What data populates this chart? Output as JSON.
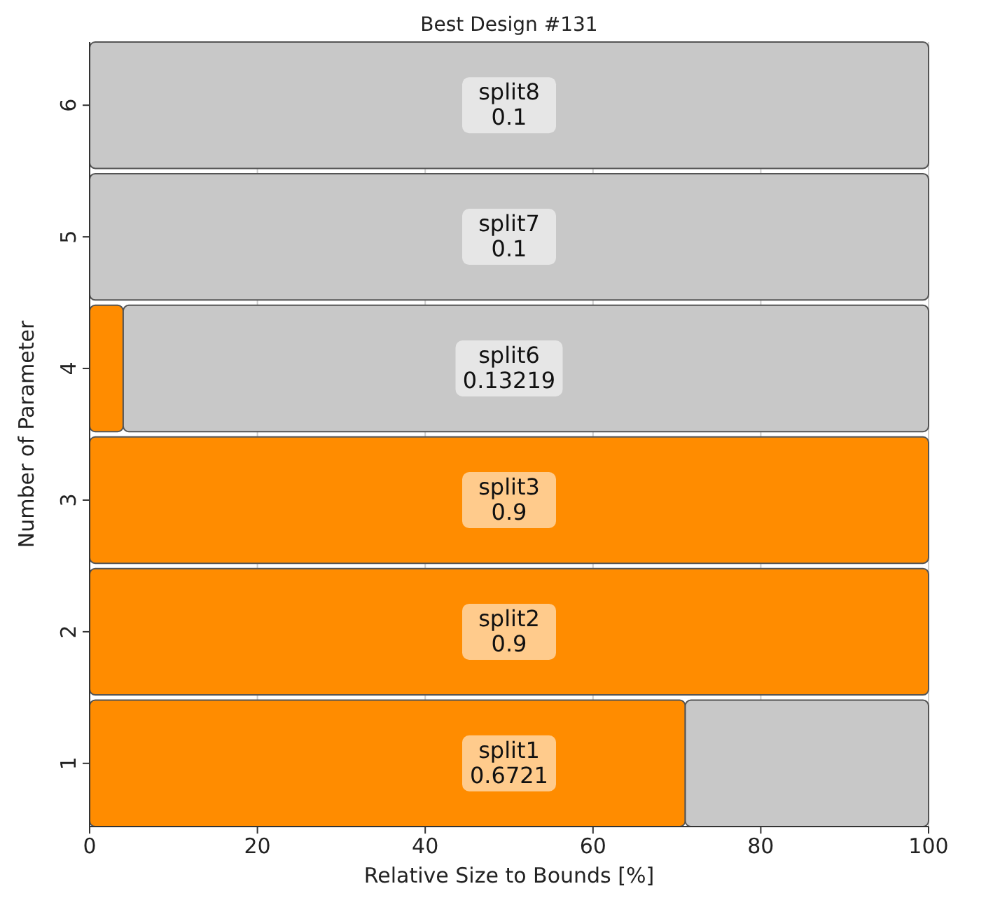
{
  "chart_data": {
    "type": "bar",
    "orientation": "horizontal",
    "stacked": true,
    "title": "Best Design #131",
    "xlabel": "Relative Size to Bounds [%]",
    "ylabel": "Number of Parameter",
    "categories": [
      "6",
      "5",
      "4",
      "3",
      "2",
      "1"
    ],
    "series": [
      {
        "color": "#ff8c00",
        "values": [
          0,
          0,
          4,
          100,
          100,
          71
        ]
      },
      {
        "color": "#c8c8c8",
        "values": [
          100,
          100,
          96,
          0,
          0,
          29
        ]
      }
    ],
    "xlim": [
      0,
      100
    ],
    "xticks": [
      0,
      20,
      40,
      60,
      80,
      100
    ],
    "grid": "x",
    "annotations": [
      "split8\n0.1",
      "split7\n0.1",
      "split6\n0.13219",
      "split3\n0.9",
      "split2\n0.9",
      "split1\n0.6721"
    ]
  }
}
